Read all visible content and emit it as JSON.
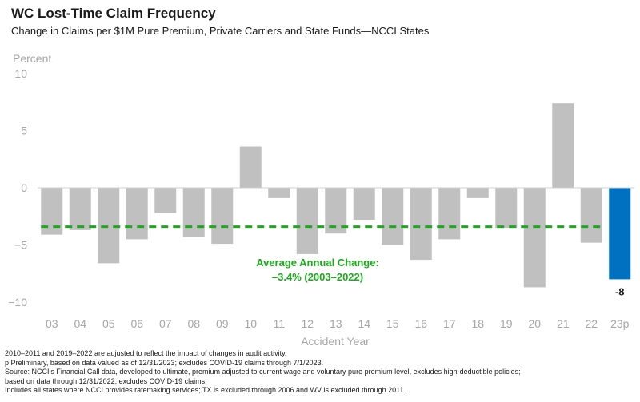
{
  "header": {
    "title": "WC Lost-Time Claim Frequency",
    "subtitle": "Change in Claims per $1M Pure Premium, Private Carriers and State Funds—NCCI States"
  },
  "chart_data": {
    "type": "bar",
    "title": "WC Lost-Time Claim Frequency",
    "subtitle": "Change in Claims per $1M Pure Premium, Private Carriers and State Funds—NCCI States",
    "ylabel": "Percent",
    "xlabel": "Accident Year",
    "ylim": [
      -10,
      10
    ],
    "yticks": [
      10,
      5,
      0,
      -5,
      -10
    ],
    "ytick_labels": [
      "10",
      "5",
      "0",
      "−5",
      "−10"
    ],
    "grid": false,
    "categories": [
      "03",
      "04",
      "05",
      "06",
      "07",
      "08",
      "09",
      "10",
      "11",
      "12",
      "13",
      "14",
      "15",
      "16",
      "17",
      "18",
      "19",
      "20",
      "21",
      "22",
      "23p"
    ],
    "values": [
      -4.1,
      -3.7,
      -6.6,
      -4.5,
      -2.2,
      -4.3,
      -4.9,
      3.6,
      -0.9,
      -5.8,
      -4.0,
      -2.8,
      -5.0,
      -6.3,
      -4.5,
      -0.9,
      -3.5,
      -8.7,
      7.4,
      -4.8,
      -8.0
    ],
    "colors": {
      "historical": "#c0c0c0",
      "preliminary": "#0070c0",
      "average_line": "#1aab1a",
      "annotation": "#1aab1a",
      "axis_text": "#a6a6a6",
      "zero_line": "#d0d0d0"
    },
    "average_line": {
      "value": -3.4,
      "from_category": "03",
      "to_category": "22"
    },
    "annotation_lines": [
      "Average Annual Change:",
      "–3.4% (2003–2022)"
    ],
    "data_labels": [
      {
        "category": "23p",
        "text": "-8"
      }
    ]
  },
  "footnotes": [
    "2010–2011 and 2019–2022 are adjusted to reflect the impact of changes in audit activity.",
    "p Preliminary, based on data valued as of 12/31/2023; excludes COVID-19 claims through 7/1/2023.",
    "Source: NCCI’s Financial Call data, developed to ultimate, premium adjusted to current wage and voluntary pure premium level, excludes high-deductible policies;",
    "based on data through 12/31/2022; excludes COVID-19 claims.",
    "Includes all states where NCCI provides ratemaking services; TX is excluded through 2006 and WV is excluded through 2011."
  ]
}
